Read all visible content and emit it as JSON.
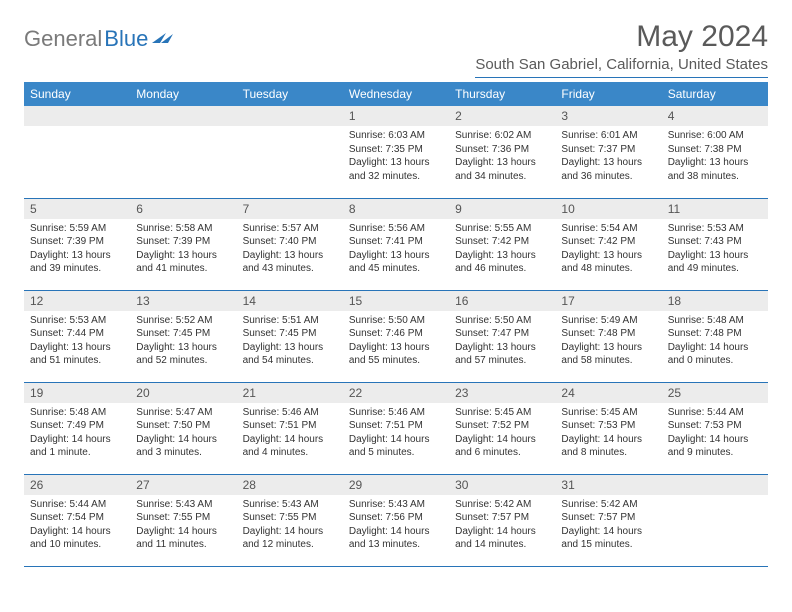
{
  "logo": {
    "word1": "General",
    "word2": "Blue"
  },
  "title": "May 2024",
  "location": "South San Gabriel, California, United States",
  "colors": {
    "header_bg": "#3a87c8",
    "accent": "#2874b8",
    "daynum_bg": "#ececec",
    "text": "#333333",
    "muted": "#5a5a5a"
  },
  "weekdays": [
    "Sunday",
    "Monday",
    "Tuesday",
    "Wednesday",
    "Thursday",
    "Friday",
    "Saturday"
  ],
  "weeks": [
    [
      null,
      null,
      null,
      {
        "n": "1",
        "sunrise": "6:03 AM",
        "sunset": "7:35 PM",
        "daylight": "13 hours and 32 minutes."
      },
      {
        "n": "2",
        "sunrise": "6:02 AM",
        "sunset": "7:36 PM",
        "daylight": "13 hours and 34 minutes."
      },
      {
        "n": "3",
        "sunrise": "6:01 AM",
        "sunset": "7:37 PM",
        "daylight": "13 hours and 36 minutes."
      },
      {
        "n": "4",
        "sunrise": "6:00 AM",
        "sunset": "7:38 PM",
        "daylight": "13 hours and 38 minutes."
      }
    ],
    [
      {
        "n": "5",
        "sunrise": "5:59 AM",
        "sunset": "7:39 PM",
        "daylight": "13 hours and 39 minutes."
      },
      {
        "n": "6",
        "sunrise": "5:58 AM",
        "sunset": "7:39 PM",
        "daylight": "13 hours and 41 minutes."
      },
      {
        "n": "7",
        "sunrise": "5:57 AM",
        "sunset": "7:40 PM",
        "daylight": "13 hours and 43 minutes."
      },
      {
        "n": "8",
        "sunrise": "5:56 AM",
        "sunset": "7:41 PM",
        "daylight": "13 hours and 45 minutes."
      },
      {
        "n": "9",
        "sunrise": "5:55 AM",
        "sunset": "7:42 PM",
        "daylight": "13 hours and 46 minutes."
      },
      {
        "n": "10",
        "sunrise": "5:54 AM",
        "sunset": "7:42 PM",
        "daylight": "13 hours and 48 minutes."
      },
      {
        "n": "11",
        "sunrise": "5:53 AM",
        "sunset": "7:43 PM",
        "daylight": "13 hours and 49 minutes."
      }
    ],
    [
      {
        "n": "12",
        "sunrise": "5:53 AM",
        "sunset": "7:44 PM",
        "daylight": "13 hours and 51 minutes."
      },
      {
        "n": "13",
        "sunrise": "5:52 AM",
        "sunset": "7:45 PM",
        "daylight": "13 hours and 52 minutes."
      },
      {
        "n": "14",
        "sunrise": "5:51 AM",
        "sunset": "7:45 PM",
        "daylight": "13 hours and 54 minutes."
      },
      {
        "n": "15",
        "sunrise": "5:50 AM",
        "sunset": "7:46 PM",
        "daylight": "13 hours and 55 minutes."
      },
      {
        "n": "16",
        "sunrise": "5:50 AM",
        "sunset": "7:47 PM",
        "daylight": "13 hours and 57 minutes."
      },
      {
        "n": "17",
        "sunrise": "5:49 AM",
        "sunset": "7:48 PM",
        "daylight": "13 hours and 58 minutes."
      },
      {
        "n": "18",
        "sunrise": "5:48 AM",
        "sunset": "7:48 PM",
        "daylight": "14 hours and 0 minutes."
      }
    ],
    [
      {
        "n": "19",
        "sunrise": "5:48 AM",
        "sunset": "7:49 PM",
        "daylight": "14 hours and 1 minute."
      },
      {
        "n": "20",
        "sunrise": "5:47 AM",
        "sunset": "7:50 PM",
        "daylight": "14 hours and 3 minutes."
      },
      {
        "n": "21",
        "sunrise": "5:46 AM",
        "sunset": "7:51 PM",
        "daylight": "14 hours and 4 minutes."
      },
      {
        "n": "22",
        "sunrise": "5:46 AM",
        "sunset": "7:51 PM",
        "daylight": "14 hours and 5 minutes."
      },
      {
        "n": "23",
        "sunrise": "5:45 AM",
        "sunset": "7:52 PM",
        "daylight": "14 hours and 6 minutes."
      },
      {
        "n": "24",
        "sunrise": "5:45 AM",
        "sunset": "7:53 PM",
        "daylight": "14 hours and 8 minutes."
      },
      {
        "n": "25",
        "sunrise": "5:44 AM",
        "sunset": "7:53 PM",
        "daylight": "14 hours and 9 minutes."
      }
    ],
    [
      {
        "n": "26",
        "sunrise": "5:44 AM",
        "sunset": "7:54 PM",
        "daylight": "14 hours and 10 minutes."
      },
      {
        "n": "27",
        "sunrise": "5:43 AM",
        "sunset": "7:55 PM",
        "daylight": "14 hours and 11 minutes."
      },
      {
        "n": "28",
        "sunrise": "5:43 AM",
        "sunset": "7:55 PM",
        "daylight": "14 hours and 12 minutes."
      },
      {
        "n": "29",
        "sunrise": "5:43 AM",
        "sunset": "7:56 PM",
        "daylight": "14 hours and 13 minutes."
      },
      {
        "n": "30",
        "sunrise": "5:42 AM",
        "sunset": "7:57 PM",
        "daylight": "14 hours and 14 minutes."
      },
      {
        "n": "31",
        "sunrise": "5:42 AM",
        "sunset": "7:57 PM",
        "daylight": "14 hours and 15 minutes."
      },
      null
    ]
  ],
  "labels": {
    "sunrise": "Sunrise: ",
    "sunset": "Sunset: ",
    "daylight": "Daylight: "
  }
}
